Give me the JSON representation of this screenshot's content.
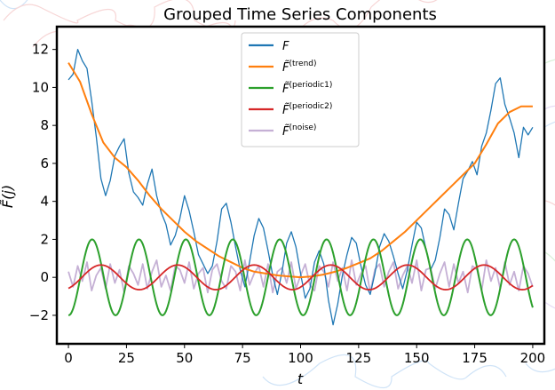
{
  "chart_data": {
    "type": "line",
    "title": "Grouped Time Series Components",
    "xlabel": "t",
    "ylabel": "F̃(j)",
    "xlim": [
      -5,
      205
    ],
    "ylim": [
      -3.5,
      13.2
    ],
    "xticks": [
      0,
      25,
      50,
      75,
      100,
      125,
      150,
      175,
      200
    ],
    "yticks": [
      -2,
      0,
      2,
      4,
      6,
      8,
      10,
      12
    ],
    "xtick_labels": [
      "0",
      "25",
      "50",
      "75",
      "100",
      "125",
      "150",
      "175",
      "200"
    ],
    "ytick_labels": [
      "−2",
      "0",
      "2",
      "4",
      "6",
      "8",
      "10",
      "12"
    ],
    "legend_position": "top-center",
    "legend": [
      {
        "base": "F",
        "sup": "",
        "color": "#1f77b4"
      },
      {
        "base": "F̃",
        "sup": "(trend)",
        "color": "#ff7f0e"
      },
      {
        "base": "F̃",
        "sup": "(periodic1)",
        "color": "#2ca02c"
      },
      {
        "base": "F̃",
        "sup": "(periodic2)",
        "color": "#d62728"
      },
      {
        "base": "F̃",
        "sup": "(noise)",
        "color": "#c5b0d5"
      }
    ],
    "series": [
      {
        "key": "F",
        "color": "#1f77b4",
        "width": 1.3,
        "x": [
          0,
          2,
          4,
          6,
          8,
          10,
          12,
          14,
          16,
          18,
          20,
          22,
          24,
          26,
          28,
          30,
          32,
          34,
          36,
          38,
          40,
          42,
          44,
          46,
          48,
          50,
          52,
          54,
          56,
          58,
          60,
          62,
          64,
          66,
          68,
          70,
          72,
          74,
          76,
          78,
          80,
          82,
          84,
          86,
          88,
          90,
          92,
          94,
          96,
          98,
          100,
          102,
          104,
          106,
          108,
          110,
          112,
          114,
          116,
          118,
          120,
          122,
          124,
          126,
          128,
          130,
          132,
          134,
          136,
          138,
          140,
          142,
          144,
          146,
          148,
          150,
          152,
          154,
          156,
          158,
          160,
          162,
          164,
          166,
          168,
          170,
          172,
          174,
          176,
          178,
          180,
          182,
          184,
          186,
          188,
          190,
          192,
          194,
          196,
          198,
          200
        ],
        "y": [
          10.4,
          10.7,
          12.0,
          11.4,
          11.0,
          9.3,
          7.4,
          5.2,
          4.3,
          5.1,
          6.4,
          6.9,
          7.3,
          5.5,
          4.5,
          4.2,
          3.8,
          4.9,
          5.7,
          4.3,
          3.4,
          2.8,
          1.7,
          2.2,
          3.1,
          4.3,
          3.5,
          2.4,
          1.2,
          0.7,
          0.2,
          0.6,
          1.9,
          3.6,
          3.9,
          2.9,
          1.6,
          0.4,
          -0.5,
          0.8,
          2.2,
          3.1,
          2.6,
          1.4,
          0.1,
          -0.9,
          0.3,
          1.8,
          2.4,
          1.6,
          0.2,
          -1.1,
          -0.6,
          0.8,
          1.4,
          0.7,
          -1.2,
          -2.5,
          -1.4,
          0.1,
          1.2,
          2.1,
          1.8,
          0.6,
          -0.4,
          -0.9,
          0.2,
          1.6,
          2.3,
          1.9,
          1.1,
          0.2,
          -0.6,
          0.4,
          1.7,
          2.9,
          2.6,
          1.5,
          0.4,
          0.9,
          2.1,
          3.6,
          3.3,
          2.5,
          3.9,
          5.2,
          5.6,
          6.1,
          5.4,
          6.9,
          7.6,
          8.8,
          10.2,
          10.5,
          9.1,
          8.4,
          7.6,
          6.3,
          7.9,
          7.5,
          7.9
        ]
      },
      {
        "key": "trend",
        "color": "#ff7f0e",
        "width": 2,
        "x": [
          0,
          5,
          10,
          15,
          20,
          25,
          30,
          35,
          40,
          45,
          50,
          55,
          60,
          65,
          70,
          75,
          80,
          85,
          90,
          95,
          100,
          105,
          110,
          115,
          120,
          125,
          130,
          135,
          140,
          145,
          150,
          155,
          160,
          165,
          170,
          175,
          180,
          185,
          190,
          195,
          200
        ],
        "y": [
          11.3,
          10.3,
          8.6,
          7.1,
          6.3,
          5.8,
          5.1,
          4.3,
          3.6,
          3.0,
          2.4,
          1.9,
          1.5,
          1.1,
          0.8,
          0.5,
          0.3,
          0.2,
          0.1,
          0.05,
          0.0,
          0.05,
          0.15,
          0.3,
          0.5,
          0.75,
          1.0,
          1.4,
          1.9,
          2.4,
          3.0,
          3.6,
          4.2,
          4.8,
          5.4,
          6.0,
          7.0,
          8.1,
          8.7,
          9.0,
          9.0
        ]
      },
      {
        "key": "periodic1",
        "amp": 2.0,
        "period": 20.2,
        "phase": -1.6,
        "color": "#2ca02c",
        "width": 2
      },
      {
        "key": "periodic2",
        "amp": 0.65,
        "period": 33.0,
        "phase": -1.1,
        "color": "#d62728",
        "width": 1.8
      },
      {
        "key": "noise",
        "amp": 0.8,
        "color": "#c5b0d5",
        "width": 1.8,
        "y": [
          0.3,
          -0.5,
          0.6,
          -0.2,
          0.8,
          -0.7,
          0.1,
          0.5,
          -0.6,
          0.7,
          -0.3,
          0.4,
          -0.8,
          0.6,
          0.2,
          -0.4,
          0.7,
          -0.6,
          0.3,
          0.9,
          -0.5,
          0.1,
          -0.7,
          0.6,
          0.4,
          -0.3,
          0.8,
          -0.6,
          0.2,
          0.5,
          -0.8,
          0.4,
          0.7,
          -0.2,
          -0.6,
          0.6,
          0.3,
          -0.7,
          0.9,
          -0.4,
          0.2,
          0.6,
          -0.5,
          0.7,
          -0.8,
          0.3,
          0.5,
          -0.3,
          0.8,
          -0.6,
          0.1,
          0.7,
          -0.4,
          -0.7,
          0.6,
          0.3,
          -0.5,
          0.8,
          -0.2,
          0.5,
          -0.7,
          0.9,
          -0.4,
          0.2,
          0.6,
          -0.8,
          0.4,
          0.7,
          -0.5,
          0.3,
          0.8,
          -0.6,
          0.1,
          0.6,
          -0.3,
          0.9,
          -0.7,
          0.4,
          0.5,
          -0.6,
          0.2,
          0.8,
          -0.5,
          0.7,
          -0.3,
          0.3,
          -0.8,
          0.6,
          0.4,
          -0.7,
          0.9,
          -0.2,
          0.5,
          -0.6,
          0.8,
          -0.4,
          0.3,
          -0.7,
          0.6,
          0.2,
          -0.5
        ]
      }
    ]
  }
}
